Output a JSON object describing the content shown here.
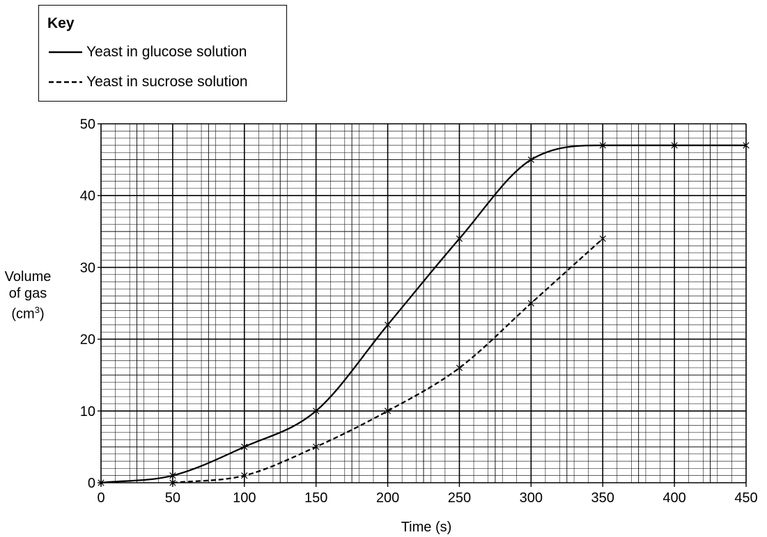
{
  "chart_data": {
    "type": "line",
    "title": "",
    "xlabel": "Time (s)",
    "ylabel": "Volume of gas (cm³)",
    "ylabel_lines": [
      "Volume",
      "of gas",
      "(cm",
      "3",
      ")"
    ],
    "xlim": [
      0,
      450
    ],
    "ylim": [
      0,
      50
    ],
    "x_ticks": [
      0,
      50,
      100,
      150,
      200,
      250,
      300,
      350,
      400,
      450
    ],
    "y_ticks": [
      0,
      10,
      20,
      30,
      40,
      50
    ],
    "grid": true,
    "legend": {
      "title": "Key",
      "position": "top-left"
    },
    "series": [
      {
        "name": "Yeast in glucose solution",
        "style": "solid",
        "x": [
          0,
          50,
          100,
          150,
          200,
          250,
          300,
          350,
          400,
          450
        ],
        "y": [
          0,
          1,
          5,
          10,
          22,
          34,
          45,
          47,
          47,
          47
        ]
      },
      {
        "name": "Yeast in sucrose solution",
        "style": "dashed",
        "x": [
          50,
          100,
          150,
          200,
          250,
          300,
          350
        ],
        "y": [
          0,
          1,
          5,
          10,
          16,
          25,
          34
        ]
      }
    ]
  }
}
